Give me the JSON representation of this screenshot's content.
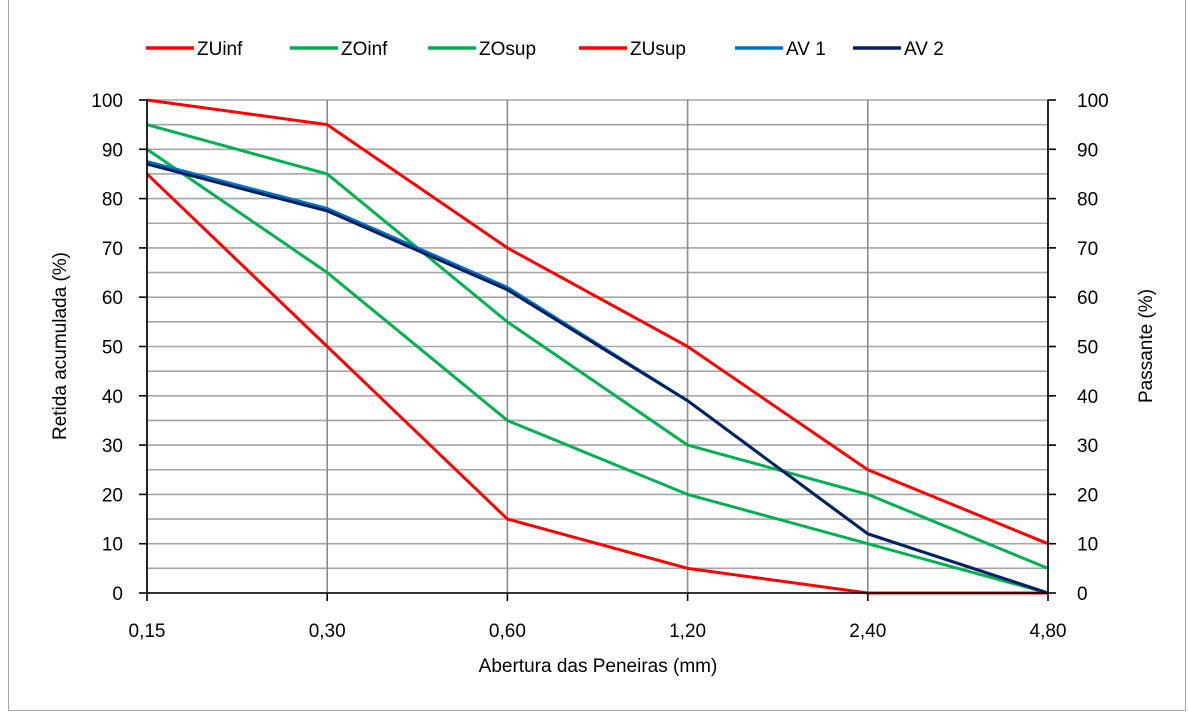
{
  "chart_data": {
    "type": "line",
    "title": "",
    "xlabel": "Abertura das Peneiras (mm)",
    "ylabel": "Retida acumulada (%)",
    "y2label": "Passante (%)",
    "categories": [
      "0,15",
      "0,30",
      "0,60",
      "1,20",
      "2,40",
      "4,80"
    ],
    "ylim": [
      0,
      100
    ],
    "y2lim": [
      100,
      0
    ],
    "yticks": [
      0,
      10,
      20,
      30,
      40,
      50,
      60,
      70,
      80,
      90,
      100
    ],
    "y2ticks": [
      100,
      90,
      80,
      70,
      60,
      50,
      40,
      30,
      20,
      10,
      0
    ],
    "grid": true,
    "legend_position": "top",
    "series": [
      {
        "name": "ZUinf",
        "color": "#ff0000",
        "values": [
          85,
          50,
          15,
          5,
          0,
          0
        ]
      },
      {
        "name": "ZOinf",
        "color": "#00b050",
        "values": [
          90,
          65,
          35,
          20,
          10,
          0
        ]
      },
      {
        "name": "ZOsup",
        "color": "#00b050",
        "values": [
          95,
          85,
          55,
          30,
          20,
          5
        ]
      },
      {
        "name": "ZUsup",
        "color": "#ff0000",
        "values": [
          100,
          95,
          70,
          50,
          25,
          10
        ]
      },
      {
        "name": "AV 1",
        "color": "#0070c0",
        "values": [
          87.5,
          78,
          62,
          39,
          12,
          0
        ]
      },
      {
        "name": "AV 2",
        "color": "#002060",
        "values": [
          87,
          77.5,
          61.5,
          39,
          12,
          0
        ]
      }
    ]
  }
}
